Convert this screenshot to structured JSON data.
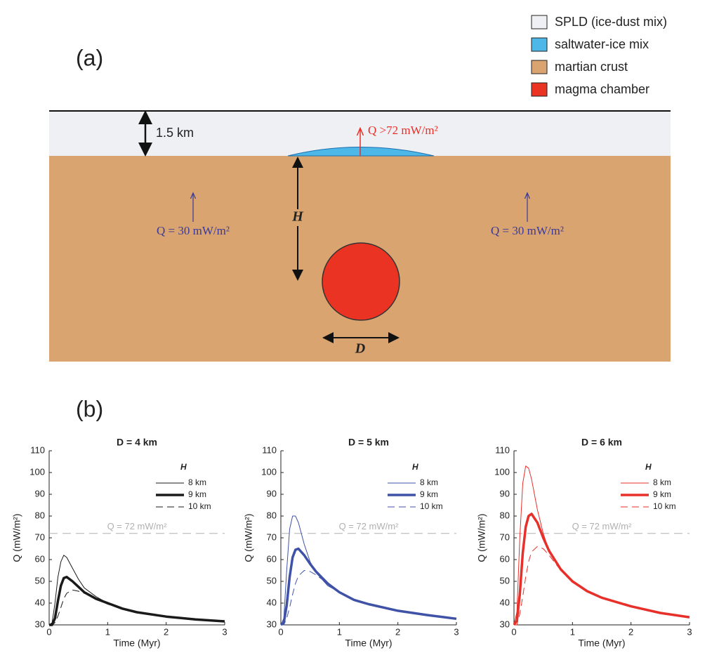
{
  "diagram": {
    "panel_label": "(a)",
    "legend": [
      {
        "label": "SPLD (ice-dust mix)",
        "color": "#eff0f3"
      },
      {
        "label": "saltwater-ice mix",
        "color": "#4db8e8"
      },
      {
        "label": "martian crust",
        "color": "#d9a46f"
      },
      {
        "label": "magma chamber",
        "color": "#ea3323"
      }
    ],
    "labels": {
      "thickness": "1.5 km",
      "q_high": "Q >72 mW/m²",
      "q_left": "Q = 30 mW/m²",
      "q_right": "Q = 30 mW/m²",
      "depth": "H",
      "diameter": "D"
    }
  },
  "panel_b_label": "(b)",
  "chart_data": [
    {
      "type": "line",
      "title": "D = 4 km",
      "x_label": "Time (Myr)",
      "y_label": "Q (mW/m²)",
      "legend_title": "H",
      "xlim": [
        0,
        3
      ],
      "xticks": [
        0,
        1,
        2,
        3
      ],
      "ylim": [
        30,
        110
      ],
      "yticks": [
        30,
        40,
        50,
        60,
        70,
        80,
        90,
        100,
        110
      ],
      "reference_line": {
        "value": 72,
        "label": "Q = 72 mW/m²",
        "color": "#b0b0b0"
      },
      "x": [
        0,
        0.05,
        0.1,
        0.15,
        0.2,
        0.25,
        0.3,
        0.4,
        0.5,
        0.6,
        0.8,
        1.0,
        1.25,
        1.5,
        2.0,
        2.5,
        3.0
      ],
      "series": [
        {
          "name": "8 km",
          "color": "#1a1a1a",
          "line_width": 1,
          "dash": false,
          "values": [
            30,
            31,
            40,
            52,
            59,
            62,
            61,
            56,
            51,
            47,
            43,
            40,
            37.5,
            35.8,
            33.8,
            32.5,
            31.6
          ]
        },
        {
          "name": "9 km",
          "color": "#1a1a1a",
          "line_width": 3.5,
          "dash": false,
          "values": [
            30,
            30,
            33,
            41,
            48,
            51.5,
            52,
            50,
            47.5,
            45,
            42,
            40,
            37.5,
            35.8,
            33.8,
            32.5,
            31.6
          ]
        },
        {
          "name": "10 km",
          "color": "#1a1a1a",
          "line_width": 1,
          "dash": true,
          "values": [
            30,
            30,
            31,
            34,
            38,
            42,
            44.5,
            46,
            45.5,
            44.5,
            42,
            39.5,
            37.3,
            35.7,
            33.8,
            32.5,
            31.6
          ]
        }
      ]
    },
    {
      "type": "line",
      "title": "D = 5 km",
      "x_label": "Time (Myr)",
      "y_label": "Q (mW/m²)",
      "legend_title": "H",
      "xlim": [
        0,
        3
      ],
      "xticks": [
        0,
        1,
        2,
        3
      ],
      "ylim": [
        30,
        110
      ],
      "yticks": [
        30,
        40,
        50,
        60,
        70,
        80,
        90,
        100,
        110
      ],
      "reference_line": {
        "value": 72,
        "label": "Q = 72 mW/m²",
        "color": "#b0b0b0"
      },
      "x": [
        0,
        0.05,
        0.1,
        0.15,
        0.2,
        0.25,
        0.3,
        0.4,
        0.5,
        0.6,
        0.8,
        1.0,
        1.25,
        1.5,
        2.0,
        2.5,
        3.0
      ],
      "series": [
        {
          "name": "8 km",
          "color": "#3f52a8",
          "line_width": 1,
          "dash": false,
          "values": [
            30,
            33,
            55,
            74,
            80,
            80,
            77,
            67,
            59,
            54,
            48,
            45,
            41.5,
            39.5,
            36.5,
            34.5,
            32.8
          ]
        },
        {
          "name": "9 km",
          "color": "#3f52a8",
          "line_width": 3.5,
          "dash": false,
          "values": [
            30,
            31,
            39,
            52,
            61,
            64.5,
            65,
            62,
            58,
            54.5,
            49,
            45,
            41.5,
            39.5,
            36.5,
            34.5,
            32.8
          ]
        },
        {
          "name": "10 km",
          "color": "#3f52a8",
          "line_width": 1,
          "dash": true,
          "values": [
            30,
            30,
            33,
            38,
            44,
            49,
            52.5,
            55,
            54.5,
            53,
            49,
            45,
            41.5,
            39.5,
            36.5,
            34.5,
            32.8
          ]
        }
      ]
    },
    {
      "type": "line",
      "title": "D = 6 km",
      "x_label": "Time (Myr)",
      "y_label": "Q (mW/m²)",
      "legend_title": "H",
      "xlim": [
        0,
        3
      ],
      "xticks": [
        0,
        1,
        2,
        3
      ],
      "ylim": [
        30,
        110
      ],
      "yticks": [
        30,
        40,
        50,
        60,
        70,
        80,
        90,
        100,
        110
      ],
      "reference_line": {
        "value": 72,
        "label": "Q = 72 mW/m²",
        "color": "#b0b0b0"
      },
      "x": [
        0,
        0.05,
        0.1,
        0.15,
        0.2,
        0.25,
        0.3,
        0.4,
        0.5,
        0.6,
        0.8,
        1.0,
        1.25,
        1.5,
        2.0,
        2.5,
        3.0
      ],
      "series": [
        {
          "name": "8 km",
          "color": "#e8302a",
          "line_width": 1,
          "dash": false,
          "values": [
            30,
            36,
            70,
            95,
            103,
            102,
            97,
            83,
            72,
            64,
            55,
            50,
            45.5,
            42.5,
            38.5,
            35.5,
            33.5
          ]
        },
        {
          "name": "9 km",
          "color": "#e8302a",
          "line_width": 3.5,
          "dash": false,
          "values": [
            30,
            32,
            44,
            63,
            75,
            80,
            81,
            77,
            70,
            64,
            55.5,
            50,
            45.5,
            42.5,
            38.5,
            35.5,
            33.5
          ]
        },
        {
          "name": "10 km",
          "color": "#e8302a",
          "line_width": 1,
          "dash": true,
          "values": [
            30,
            30,
            35,
            43,
            52,
            59,
            63.5,
            66,
            65,
            62,
            55,
            49.5,
            45.5,
            42.5,
            38.5,
            35.5,
            33.5
          ]
        }
      ]
    }
  ]
}
